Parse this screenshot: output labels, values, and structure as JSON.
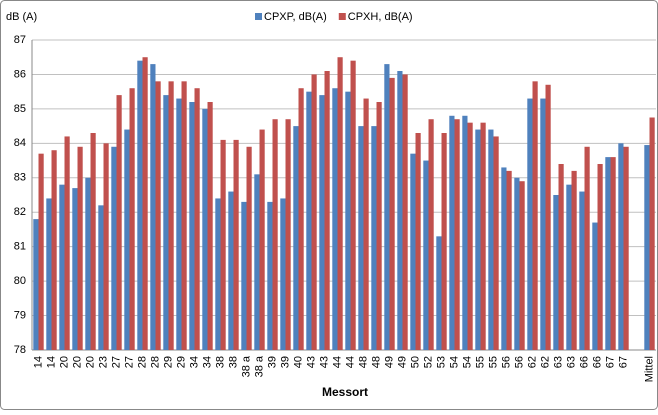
{
  "chart_data": {
    "type": "bar",
    "y_label": "dB (A)",
    "x_label": "Messort",
    "categories": [
      "14",
      "14",
      "20",
      "20",
      "20",
      "23",
      "27",
      "27",
      "28",
      "28",
      "29",
      "29",
      "34",
      "34",
      "38",
      "38",
      "38 a",
      "38 a",
      "39",
      "39",
      "40",
      "43",
      "43",
      "44",
      "44",
      "48",
      "48",
      "49",
      "49",
      "50",
      "52",
      "53",
      "54",
      "54",
      "55",
      "55",
      "56",
      "56",
      "62",
      "62",
      "63",
      "63",
      "66",
      "66",
      "67",
      "67",
      null,
      "Mittel"
    ],
    "series": [
      {
        "name": "CPXP, dB(A)",
        "color": "#4f81bd",
        "values": [
          81.8,
          82.4,
          82.8,
          82.7,
          83.0,
          82.2,
          83.9,
          84.4,
          86.4,
          86.3,
          85.4,
          85.3,
          85.2,
          85.0,
          82.4,
          82.6,
          82.3,
          83.1,
          82.3,
          82.4,
          84.5,
          85.5,
          85.4,
          85.6,
          85.5,
          84.5,
          84.5,
          86.3,
          86.1,
          83.7,
          83.5,
          81.3,
          84.8,
          84.8,
          84.4,
          84.4,
          83.3,
          83.0,
          85.3,
          85.3,
          82.5,
          82.8,
          82.6,
          81.7,
          83.6,
          84.0,
          null,
          83.95
        ]
      },
      {
        "name": "CPXH, dB(A)",
        "color": "#c0504d",
        "values": [
          83.7,
          83.8,
          84.2,
          83.9,
          84.3,
          84.0,
          85.4,
          85.6,
          86.5,
          85.8,
          85.8,
          85.8,
          85.6,
          85.2,
          84.1,
          84.1,
          83.9,
          84.4,
          84.7,
          84.7,
          85.6,
          86.0,
          86.1,
          86.5,
          86.4,
          85.3,
          85.2,
          85.9,
          86.0,
          84.3,
          84.7,
          84.3,
          84.7,
          84.6,
          84.6,
          84.2,
          83.2,
          82.9,
          85.8,
          85.7,
          83.4,
          83.2,
          83.9,
          83.4,
          83.6,
          83.9,
          null,
          84.75
        ]
      }
    ],
    "ylim": [
      78,
      87
    ],
    "yticks": [
      78,
      79,
      80,
      81,
      82,
      83,
      84,
      85,
      86,
      87
    ],
    "grid": true
  }
}
